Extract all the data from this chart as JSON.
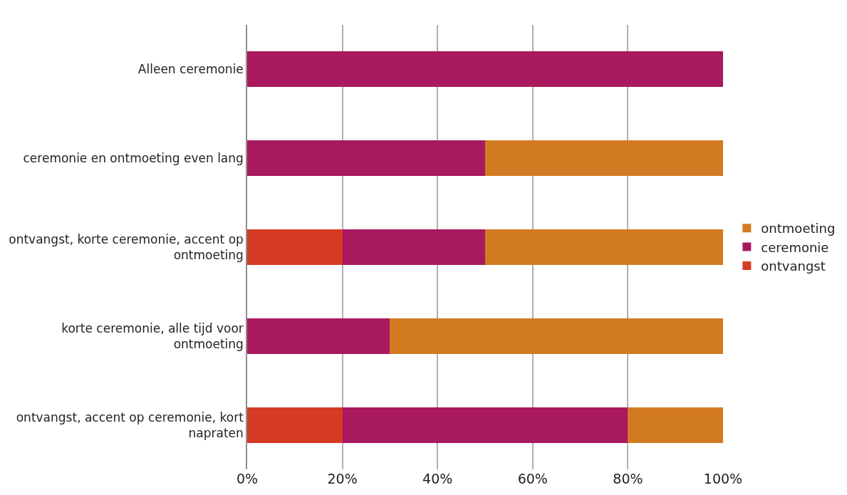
{
  "chart_data": {
    "type": "bar",
    "orientation": "horizontal",
    "stacked": true,
    "categories": [
      "Alleen ceremonie",
      "ceremonie en ontmoeting even lang",
      "ontvangst, korte ceremonie, accent op ontmoeting",
      "korte ceremonie, alle tijd voor ontmoeting",
      "ontvangst, accent op ceremonie, kort napraten"
    ],
    "series": [
      {
        "name": "ontvangst",
        "color": "#d43a24",
        "values": [
          0,
          0,
          20,
          0,
          20
        ]
      },
      {
        "name": "ceremonie",
        "color": "#a8195e",
        "values": [
          100,
          50,
          30,
          30,
          60
        ]
      },
      {
        "name": "ontmoeting",
        "color": "#d27a22",
        "values": [
          0,
          50,
          50,
          70,
          20
        ]
      }
    ],
    "xlim": [
      0,
      100
    ],
    "xticks": [
      {
        "value": 0,
        "label": "0%"
      },
      {
        "value": 20,
        "label": "20%"
      },
      {
        "value": 40,
        "label": "40%"
      },
      {
        "value": 60,
        "label": "60%"
      },
      {
        "value": 80,
        "label": "80%"
      },
      {
        "value": 100,
        "label": "100%"
      }
    ],
    "grid": "x",
    "legend": "right"
  }
}
